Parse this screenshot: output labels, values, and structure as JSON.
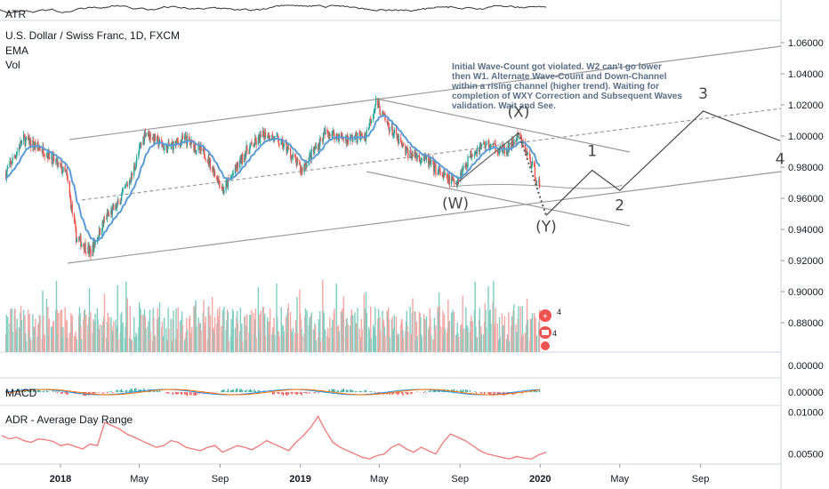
{
  "header": {
    "symbol": "U.S. Dollar / Swiss Franc, 1D, FXCM",
    "ema": "EMA",
    "vol": "Vol"
  },
  "panes": {
    "atr": "ATR",
    "macd": "MACD",
    "adr": "ADR - Average Day Range"
  },
  "annotation": {
    "lines": [
      "Initial Wave-Count got violated. W2 can't go lower",
      "then W1. Alternate Wave-Count and Down-Channel",
      "within a rising channel (higher trend). Waiting for",
      "completion of WXY Correction and Subsequent Waves",
      "validation. Wait and See."
    ]
  },
  "waves": {
    "w": "(W)",
    "x": "(X)",
    "y": "(Y)",
    "one": "1",
    "two": "2",
    "three": "3",
    "four": "4"
  },
  "badges": {
    "a": "4",
    "b": "4"
  },
  "colors": {
    "up": "#26a69a",
    "down": "#ef5350",
    "ema": "#5b9bd5",
    "vol_up": "#7fcdbf",
    "vol_down": "#f4a6a5",
    "adr": "#ef7f7f"
  },
  "chart_data": [
    {
      "type": "candlestick",
      "title": "U.S. Dollar / Swiss Franc, 1D, FXCM",
      "ylim": [
        0.86,
        1.07
      ],
      "y_ticks": [
        "1.06000",
        "1.04000",
        "1.02000",
        "1.00000",
        "0.98000",
        "0.96000",
        "0.94000",
        "0.92000",
        "0.90000",
        "0.88000"
      ],
      "x_ticks": [
        "2018",
        "May",
        "Sep",
        "2019",
        "May",
        "Sep",
        "2020",
        "May",
        "Sep"
      ],
      "close_path": [
        [
          "2017-10-10",
          0.976
        ],
        [
          "2017-11-05",
          0.998
        ],
        [
          "2017-12-10",
          0.99
        ],
        [
          "2018-01-10",
          0.975
        ],
        [
          "2018-01-25",
          0.935
        ],
        [
          "2018-02-16",
          0.925
        ],
        [
          "2018-03-10",
          0.947
        ],
        [
          "2018-03-28",
          0.955
        ],
        [
          "2018-04-20",
          0.975
        ],
        [
          "2018-05-10",
          1.003
        ],
        [
          "2018-06-10",
          0.992
        ],
        [
          "2018-07-10",
          0.998
        ],
        [
          "2018-08-10",
          0.988
        ],
        [
          "2018-09-06",
          0.965
        ],
        [
          "2018-10-10",
          0.99
        ],
        [
          "2018-11-10",
          1.002
        ],
        [
          "2018-12-10",
          0.993
        ],
        [
          "2019-01-02",
          0.978
        ],
        [
          "2019-02-10",
          1.003
        ],
        [
          "2019-03-10",
          0.998
        ],
        [
          "2019-04-10",
          1.0
        ],
        [
          "2019-04-26",
          1.022
        ],
        [
          "2019-05-10",
          1.01
        ],
        [
          "2019-06-10",
          0.99
        ],
        [
          "2019-07-10",
          0.985
        ],
        [
          "2019-08-10",
          0.973
        ],
        [
          "2019-08-25",
          0.97
        ],
        [
          "2019-09-20",
          0.99
        ],
        [
          "2019-10-10",
          0.995
        ],
        [
          "2019-11-10",
          0.99
        ],
        [
          "2019-11-29",
          1.0
        ],
        [
          "2019-12-15",
          0.986
        ],
        [
          "2019-12-31",
          0.968
        ]
      ],
      "waves": [
        {
          "label": "(W)",
          "date": "2019-08-25",
          "value": 0.966
        },
        {
          "label": "(X)",
          "date": "2019-11-29",
          "value": 1.002
        },
        {
          "label": "(Y)",
          "date": "2020-01-10",
          "value": 0.949
        },
        {
          "label": "1",
          "date": "2020-03-20",
          "value": 0.978
        },
        {
          "label": "2",
          "date": "2020-05-01",
          "value": 0.965
        },
        {
          "label": "3",
          "date": "2020-09-05",
          "value": 1.016
        },
        {
          "label": "4",
          "date": "2020-12-31",
          "value": 0.997
        }
      ]
    },
    {
      "type": "line",
      "title": "MACD",
      "y_ticks": [
        "0.00000",
        "0.00000"
      ]
    },
    {
      "type": "line",
      "title": "ADR - Average Day Range",
      "y_ticks": [
        "0.01000",
        "0.00500"
      ],
      "values": [
        0.0072,
        0.0068,
        0.007,
        0.0066,
        0.0064,
        0.0068,
        0.0067,
        0.0065,
        0.006,
        0.0062,
        0.0059,
        0.0056,
        0.0062,
        0.006,
        0.0088,
        0.0084,
        0.008,
        0.0074,
        0.007,
        0.0066,
        0.0062,
        0.0058,
        0.006,
        0.0066,
        0.0064,
        0.0058,
        0.0056,
        0.0054,
        0.0058,
        0.006,
        0.0052,
        0.0056,
        0.006,
        0.0058,
        0.0055,
        0.006,
        0.0066,
        0.0062,
        0.0058,
        0.0054,
        0.0064,
        0.0072,
        0.0082,
        0.0095,
        0.0078,
        0.0064,
        0.0058,
        0.0054,
        0.005,
        0.0046,
        0.0044,
        0.0048,
        0.005,
        0.0058,
        0.0062,
        0.0056,
        0.0052,
        0.0058,
        0.0054,
        0.005,
        0.0064,
        0.0074,
        0.007,
        0.0066,
        0.006,
        0.0054,
        0.005,
        0.0048,
        0.0046,
        0.0044,
        0.0047,
        0.0045,
        0.0044,
        0.0049,
        0.0052
      ]
    }
  ]
}
